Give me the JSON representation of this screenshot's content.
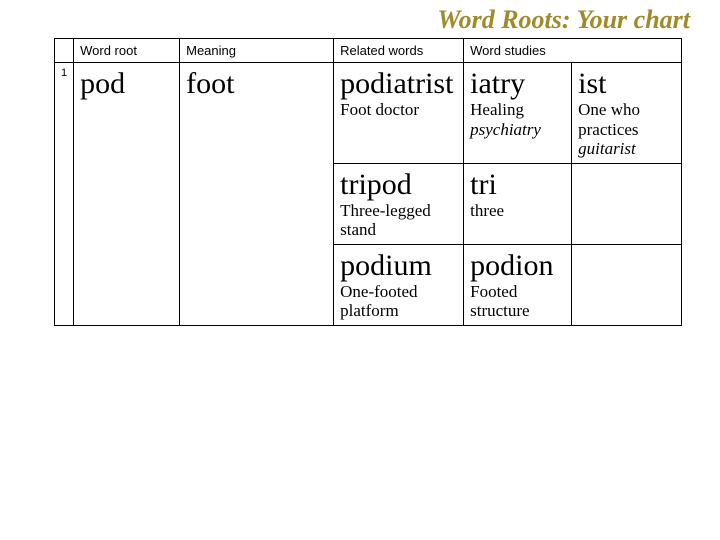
{
  "title": "Word Roots: Your chart",
  "headers": {
    "idx": "",
    "root": "Word root",
    "meaning": "Meaning",
    "related": "Related words",
    "studies": "Word studies"
  },
  "row": {
    "index": "1",
    "root": "pod",
    "meaning": "foot",
    "related": [
      {
        "word": "podiatrist",
        "def": "Foot doctor"
      },
      {
        "word": "tripod",
        "def": "Three-legged stand"
      },
      {
        "word": "podium",
        "def": "One-footed platform"
      }
    ],
    "studies": [
      {
        "a": {
          "word": "iatry",
          "def": "Healing",
          "example": "psychiatry"
        },
        "b": {
          "word": "ist",
          "def": "One who practices",
          "example": "guitarist"
        }
      },
      {
        "a": {
          "word": "tri",
          "def": "three",
          "example": ""
        },
        "b": {
          "word": "",
          "def": "",
          "example": ""
        }
      },
      {
        "a": {
          "word": "podion",
          "def": "Footed structure",
          "example": ""
        },
        "b": {
          "word": "",
          "def": "",
          "example": ""
        }
      }
    ]
  },
  "colors": {
    "title": "#a08a2a",
    "border": "#000000",
    "bg": "#ffffff"
  }
}
